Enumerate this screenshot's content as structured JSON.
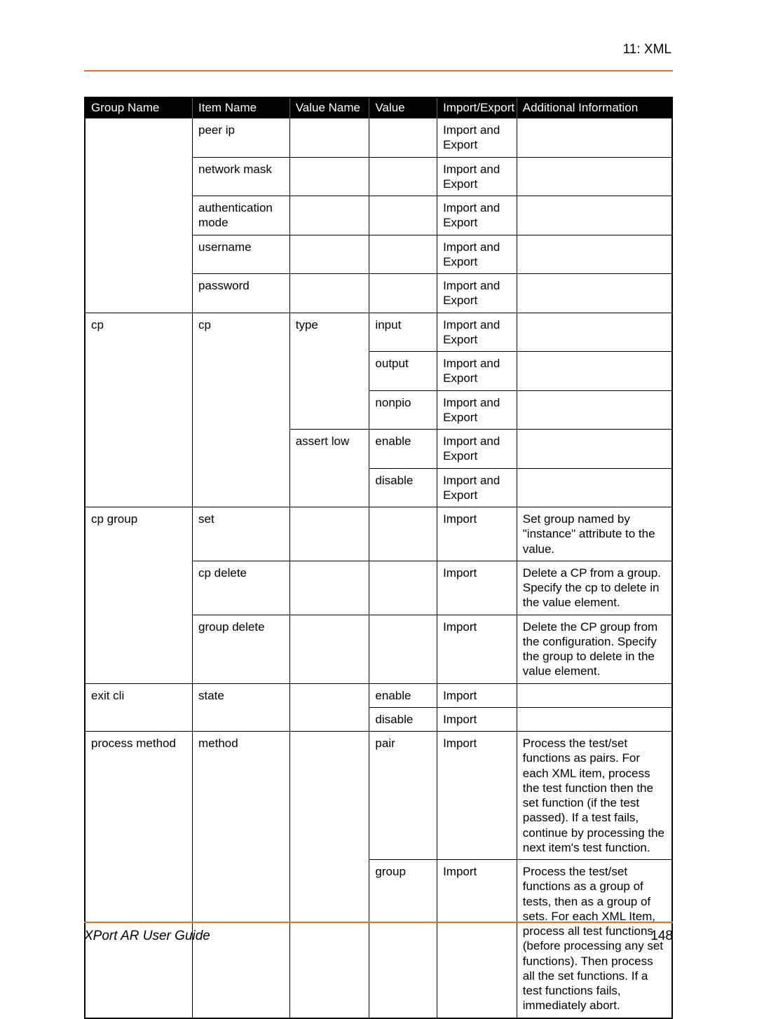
{
  "header": {
    "section": "11: XML"
  },
  "footer": {
    "title": "XPort AR User Guide",
    "page": "148"
  },
  "table": {
    "headers": [
      "Group Name",
      "Item Name",
      "Value Name",
      "Value",
      "Import/Export",
      "Additional Information"
    ],
    "r0": {
      "item": "peer ip",
      "ie": "Import and Export"
    },
    "r1": {
      "item": "network mask",
      "ie": "Import and Export"
    },
    "r2": {
      "item": "authentication mode",
      "ie": "Import and Export"
    },
    "r3": {
      "item": "username",
      "ie": "Import and Export"
    },
    "r4": {
      "item": "password",
      "ie": "Import and Export"
    },
    "r5": {
      "group": "cp",
      "item": "cp",
      "vname": "type",
      "value": "input",
      "ie": "Import and Export"
    },
    "r6": {
      "value": "output",
      "ie": "Import and Export"
    },
    "r7": {
      "value": "nonpio",
      "ie": "Import and Export"
    },
    "r8": {
      "vname": "assert low",
      "value": "enable",
      "ie": "Import and Export"
    },
    "r9": {
      "value": "disable",
      "ie": "Import and Export"
    },
    "r10": {
      "group": "cp group",
      "item": "set",
      "ie": "Import",
      "info": "Set group named by \"instance\" attribute to the value."
    },
    "r11": {
      "item": "cp delete",
      "ie": "Import",
      "info": "Delete a CP from a group. Specify the cp to delete in the value element."
    },
    "r12": {
      "item": "group delete",
      "ie": "Import",
      "info": "Delete the CP group from the configuration. Specify the group to delete in the value element."
    },
    "r13": {
      "group": "exit cli",
      "item": "state",
      "value": "enable",
      "ie": "Import"
    },
    "r14": {
      "value": "disable",
      "ie": "Import"
    },
    "r15": {
      "group": "process method",
      "item": "method",
      "value": "pair",
      "ie": "Import",
      "info": "Process the test/set functions as pairs. For each XML item, process the test function then the set function (if the test passed). If a test fails, continue by processing the next item's test function."
    },
    "r16": {
      "value": "group",
      "ie": "Import",
      "info": "Process the test/set functions as a group of tests, then as a group of sets. For each XML Item, process all test functions (before processing any set functions). Then process all the set functions. If a test functions fails, immediately abort."
    }
  }
}
